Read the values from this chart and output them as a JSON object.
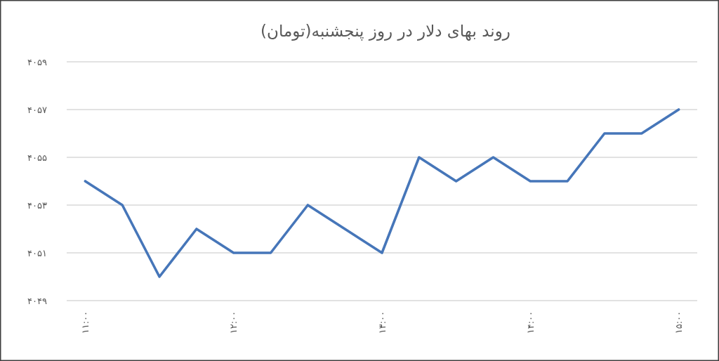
{
  "chart_data": {
    "type": "line",
    "title": "روند بهای دلار در روز پنجشنبه(تومان)",
    "x": [
      11,
      11.25,
      11.5,
      11.75,
      12,
      12.25,
      12.5,
      12.75,
      13,
      13.25,
      13.5,
      13.75,
      14,
      14.25,
      14.5,
      14.75,
      15
    ],
    "series": [
      {
        "color": "#4676b9",
        "values": [
          4054,
          4053,
          4050,
          4052,
          4051,
          4051,
          4053,
          4052,
          4051,
          4055,
          4054,
          4055,
          4054,
          4054,
          4056,
          4056,
          4057
        ]
      }
    ],
    "xlim": [
      10.875,
      15.125
    ],
    "xticks": [
      {
        "value": 11,
        "label": "۱۱:۰۰"
      },
      {
        "value": 12,
        "label": "۱۲:۰۰"
      },
      {
        "value": 13,
        "label": "۱۳:۰۰"
      },
      {
        "value": 14,
        "label": "۱۴:۰۰"
      },
      {
        "value": 15,
        "label": "۱۵:۰۰"
      }
    ],
    "ylim": [
      4049,
      4059
    ],
    "yticks": [
      {
        "value": 4049,
        "label": "۴۰۴۹"
      },
      {
        "value": 4051,
        "label": "۴۰۵۱"
      },
      {
        "value": 4053,
        "label": "۴۰۵۳"
      },
      {
        "value": 4055,
        "label": "۴۰۵۵"
      },
      {
        "value": 4057,
        "label": "۴۰۵۷"
      },
      {
        "value": 4059,
        "label": "۴۰۵۹"
      }
    ],
    "grid": "y",
    "line_style": "solid"
  }
}
